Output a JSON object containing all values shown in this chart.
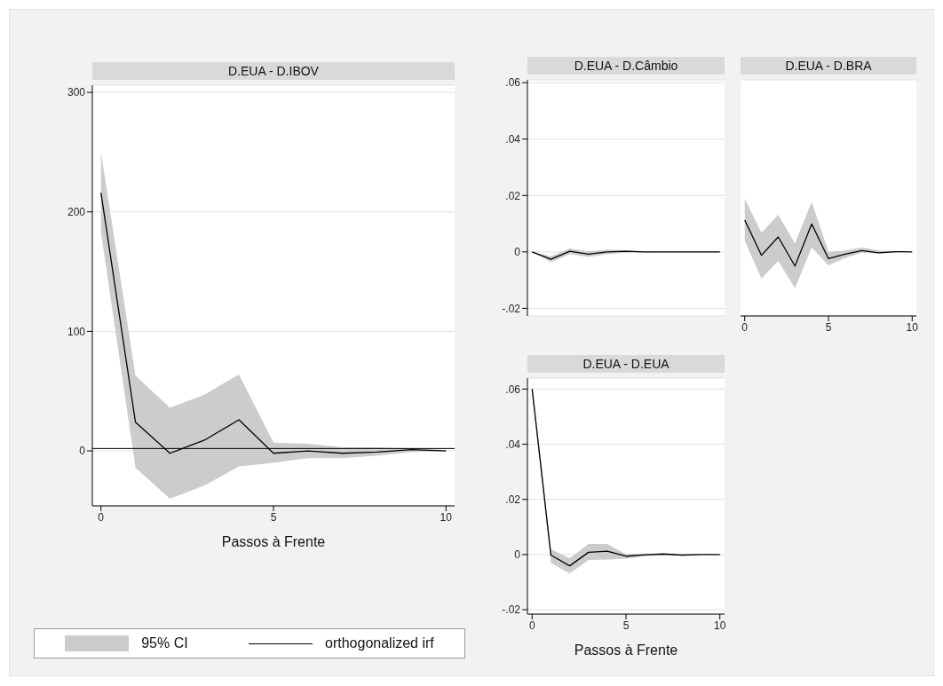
{
  "chart_data": [
    {
      "type": "line",
      "title": "D.EUA - D.IBOV",
      "xlabel": "Passos à Frente",
      "x": [
        0,
        1,
        2,
        3,
        4,
        5,
        6,
        7,
        8,
        9,
        10
      ],
      "xlim": [
        -0.25,
        10.25
      ],
      "xticks": [
        0,
        5,
        10
      ],
      "ylim": [
        -46,
        306
      ],
      "yticks": [
        0,
        100,
        200,
        300
      ],
      "grid": "y",
      "legend": "bottom",
      "annotations": [
        "95% CI"
      ],
      "series": [
        {
          "name": "orthogonalized irf",
          "color": "#000000",
          "values": [
            216,
            24,
            -2,
            9,
            26,
            -2,
            0,
            -2,
            -1,
            1,
            0
          ],
          "lower": [
            183,
            -14,
            -40,
            -29,
            -13,
            -10,
            -6,
            -6,
            -4,
            -1,
            0
          ],
          "upper": [
            250,
            63,
            36,
            47,
            64,
            7,
            6,
            3,
            3,
            2,
            1
          ]
        }
      ],
      "ref_lines": [
        {
          "axis": "y",
          "value": 2,
          "color": "#000000"
        }
      ]
    },
    {
      "type": "line",
      "title": "D.EUA - D.Câmbio",
      "x": [
        0,
        1,
        2,
        3,
        4,
        5,
        6,
        7,
        8,
        9,
        10
      ],
      "xlim": [
        -0.25,
        10.25
      ],
      "xticks": [
        0,
        5,
        10
      ],
      "ylim": [
        -0.0227,
        0.061
      ],
      "yticks": [
        {
          "value": -0.02,
          "label": "-.02"
        },
        0,
        {
          "value": 0.02,
          "label": ".02"
        },
        {
          "value": 0.04,
          "label": ".04"
        },
        {
          "value": 0.06,
          "label": ".06"
        }
      ],
      "grid": "y",
      "tick_labels": "y",
      "series": [
        {
          "color": "#000000",
          "values": [
            0,
            -0.0026,
            0.0002,
            -0.0008,
            0,
            0.0002,
            0,
            0,
            0,
            0,
            0
          ],
          "lower": [
            0,
            -0.0037,
            -0.0008,
            -0.0018,
            -0.0008,
            -0.0003,
            -0.0002,
            -0.0001,
            -0.0001,
            -0.0001,
            0
          ],
          "upper": [
            0,
            -0.0015,
            0.0012,
            0.0002,
            0.0008,
            0.0006,
            0.0002,
            0.0001,
            0.0001,
            0.0001,
            0
          ]
        }
      ]
    },
    {
      "type": "line",
      "title": "D.EUA - D.BRA",
      "x": [
        0,
        1,
        2,
        3,
        4,
        5,
        6,
        7,
        8,
        9,
        10
      ],
      "xlim": [
        -0.25,
        10.25
      ],
      "xticks": [
        0,
        5,
        10
      ],
      "ylim": [
        -0.0227,
        0.061
      ],
      "yticks": [
        -0.02,
        0,
        0.02,
        0.04,
        0.06
      ],
      "grid": "y",
      "tick_labels": "x",
      "series": [
        {
          "color": "#000000",
          "values": [
            0.0113,
            -0.0012,
            0.0053,
            -0.005,
            0.0099,
            -0.0024,
            -0.0008,
            0.0005,
            -0.0003,
            0.0001,
            0
          ],
          "lower": [
            0.0039,
            -0.0094,
            -0.0032,
            -0.0129,
            0.0016,
            -0.0048,
            -0.0022,
            -0.0003,
            -0.0006,
            -0.0003,
            0
          ],
          "upper": [
            0.0188,
            0.0068,
            0.0132,
            0.003,
            0.0178,
            0,
            0.0005,
            0.0016,
            0.0005,
            0.0003,
            0.0001
          ]
        }
      ]
    },
    {
      "type": "line",
      "title": "D.EUA - D.EUA",
      "xlabel": "Passos à Frente",
      "x": [
        0,
        1,
        2,
        3,
        4,
        5,
        6,
        7,
        8,
        9,
        10
      ],
      "xlim": [
        -0.25,
        10.25
      ],
      "xticks": [
        0,
        5,
        10
      ],
      "ylim": [
        -0.0216,
        0.064
      ],
      "yticks": [
        {
          "value": -0.02,
          "label": "-.02"
        },
        0,
        {
          "value": 0.02,
          "label": ".02"
        },
        {
          "value": 0.04,
          "label": ".04"
        },
        {
          "value": 0.06,
          "label": ".06"
        }
      ],
      "grid": "y",
      "series": [
        {
          "color": "#000000",
          "values": [
            0.06,
            -0.0002,
            -0.0041,
            0.0008,
            0.0012,
            -0.0006,
            -0.0001,
            0.0002,
            -0.0002,
            0,
            0
          ],
          "lower": [
            0.0584,
            -0.003,
            -0.0069,
            -0.002,
            -0.0018,
            -0.0015,
            -0.0006,
            -0.0003,
            -0.0004,
            -0.0001,
            -0.0001
          ],
          "upper": [
            0.0616,
            0.002,
            -0.0013,
            0.0038,
            0.0038,
            0.0001,
            0.0003,
            0.0004,
            0.0001,
            0.0001,
            0.0001
          ]
        }
      ]
    }
  ]
}
